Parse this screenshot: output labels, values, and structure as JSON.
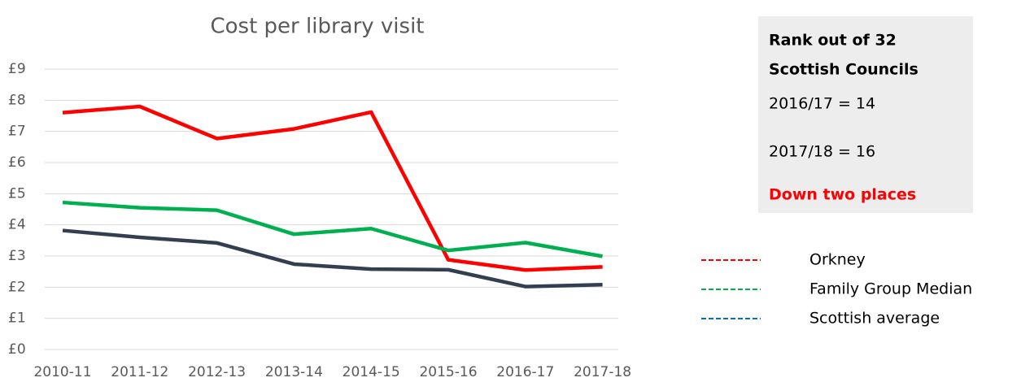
{
  "chart_data": {
    "type": "line",
    "title": "Cost per library visit",
    "categories": [
      "2010-11",
      "2011-12",
      "2012-13",
      "2013-14",
      "2014-15",
      "2015-16",
      "2016-17",
      "2017-18"
    ],
    "series": [
      {
        "name": "Orkney",
        "color": "#ff0000",
        "legend_color": "#ff0000",
        "values": [
          7.6,
          7.8,
          6.77,
          7.08,
          7.62,
          2.88,
          2.55,
          2.65
        ]
      },
      {
        "name": "Family Group Median",
        "color": "#00b050",
        "legend_color": "#00b050",
        "values": [
          4.72,
          4.55,
          4.47,
          3.7,
          3.88,
          3.18,
          3.43,
          2.99
        ]
      },
      {
        "name": "Scottish average",
        "color": "#333f50",
        "legend_color": "#0070c0",
        "values": [
          3.82,
          3.6,
          3.42,
          2.74,
          2.58,
          2.56,
          2.02,
          2.08
        ]
      }
    ],
    "ylim": [
      0,
      9
    ],
    "yticks": [
      {
        "value": 0,
        "label": "£0"
      },
      {
        "value": 1,
        "label": "£1"
      },
      {
        "value": 2,
        "label": "£2"
      },
      {
        "value": 3,
        "label": "£3"
      },
      {
        "value": 4,
        "label": "£4"
      },
      {
        "value": 5,
        "label": "£5"
      },
      {
        "value": 6,
        "label": "£6"
      },
      {
        "value": 7,
        "label": "£7"
      },
      {
        "value": 8,
        "label": "£8"
      },
      {
        "value": 9,
        "label": "£9"
      }
    ],
    "grid": true
  },
  "panel": {
    "heading": [
      "Rank out of 32",
      "Scottish Councils"
    ],
    "lines": [
      "2016/17 = 14",
      "2017/18 = 16"
    ],
    "conclusion": "Down two places"
  }
}
